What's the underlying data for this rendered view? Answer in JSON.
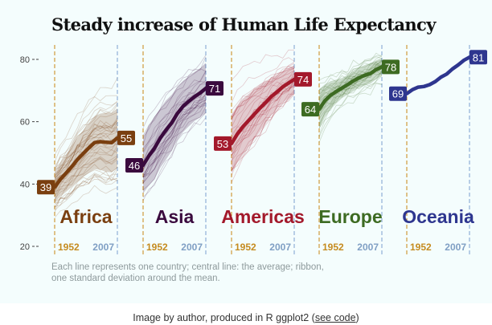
{
  "title": "Steady increase of Human Life Expectancy",
  "note": "Each line represents one country; central line: the average; ribbon, one standard deviation around the mean.",
  "caption_prefix": "Image by author, produced in R ggplot2 (",
  "caption_link": "see code",
  "caption_suffix": ")",
  "chart_data": {
    "type": "line",
    "title": "Steady increase of Human Life Expectancy",
    "y_ticks": [
      20,
      40,
      60,
      80
    ],
    "ylim": [
      20,
      84
    ],
    "grid": false,
    "colors": {
      "start_line": "#d09a3a",
      "end_line": "#8fb0d6",
      "start_label": "#c58b1f",
      "end_label": "#7f9fc4"
    },
    "panels": [
      {
        "name": "Africa",
        "color": "#7a3f10",
        "start_year": "1952",
        "end_year": "2007",
        "mean": [
          39,
          41.5,
          43.5,
          45.6,
          47.9,
          49.8,
          51.6,
          53.3,
          53.6,
          53.4,
          53.3,
          54.8
        ],
        "sd": [
          5,
          5.5,
          6,
          6.5,
          7,
          7.5,
          8,
          8.5,
          9,
          9.5,
          9.5,
          9.5
        ]
      },
      {
        "name": "Asia",
        "color": "#3a0a3e",
        "start_year": "1952",
        "end_year": "2007",
        "mean": [
          46,
          49,
          51.5,
          54.7,
          57.3,
          59.6,
          62.6,
          64.9,
          66.5,
          68.0,
          69.2,
          70.7
        ],
        "sd": [
          9,
          9.5,
          10,
          9.5,
          9.5,
          9,
          8.5,
          8.2,
          8,
          7.8,
          7.8,
          7.9
        ]
      },
      {
        "name": "Americas",
        "color": "#a3192b",
        "start_year": "1952",
        "end_year": "2007",
        "mean": [
          53,
          56,
          58.4,
          60.4,
          62.4,
          64.4,
          66.2,
          68.1,
          69.6,
          71.2,
          72.4,
          73.6
        ],
        "sd": [
          9.3,
          9.2,
          9,
          8.5,
          8,
          7.5,
          6.8,
          6,
          5.5,
          5,
          4.9,
          4.5
        ]
      },
      {
        "name": "Europe",
        "color": "#3d6b22",
        "start_year": "1952",
        "end_year": "2007",
        "mean": [
          64,
          66.7,
          68.5,
          69.7,
          70.8,
          71.9,
          73.1,
          74.1,
          74.9,
          75.5,
          76.7,
          77.6
        ],
        "sd": [
          6.4,
          5.3,
          4.5,
          3.8,
          3.2,
          3.2,
          3.3,
          3.2,
          3.3,
          3.3,
          3.0,
          2.9
        ]
      },
      {
        "name": "Oceania",
        "color": "#2e368f",
        "start_year": "1952",
        "end_year": "2007",
        "mean": [
          69,
          70.3,
          71.1,
          71.3,
          71.9,
          72.9,
          74.3,
          75.3,
          76.9,
          78.2,
          79.7,
          80.7
        ],
        "sd": [
          0.2,
          0.4,
          0.3,
          0.2,
          0.2,
          0.3,
          0.5,
          0.6,
          0.7,
          0.7,
          0.6,
          0.7
        ]
      }
    ]
  }
}
